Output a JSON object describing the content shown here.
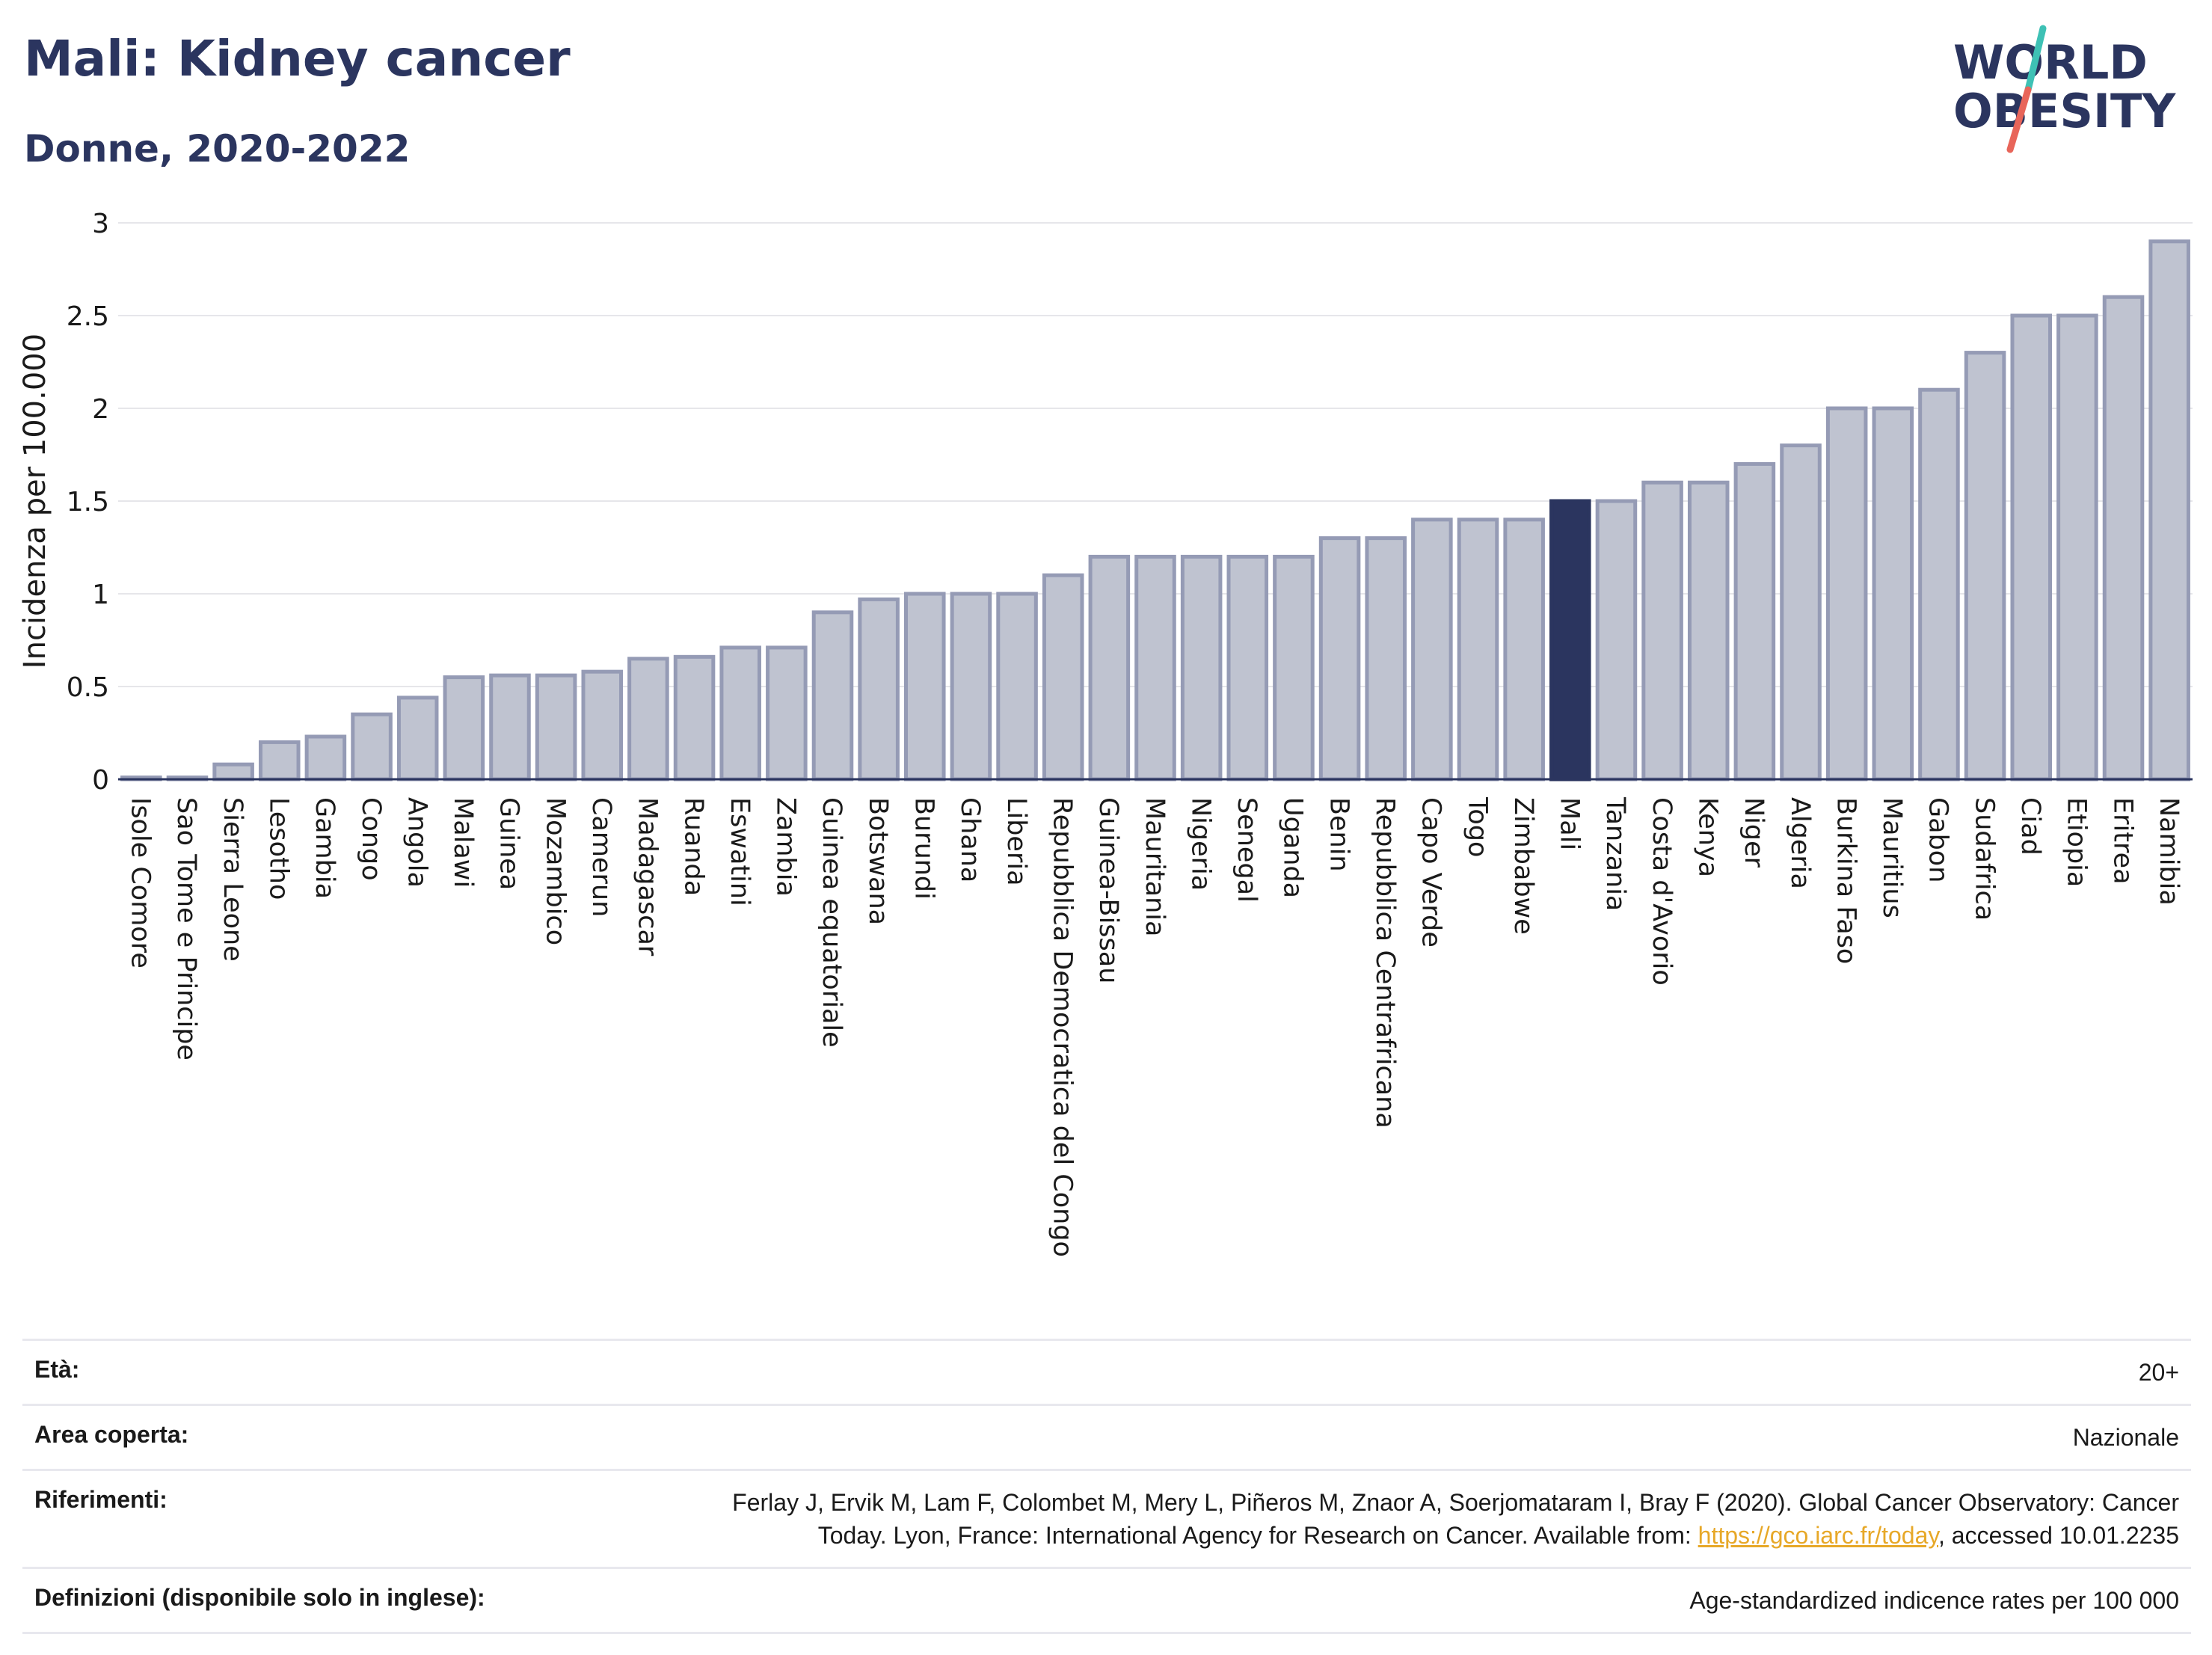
{
  "header": {
    "title": "Mali: Kidney cancer",
    "subtitle": "Donne, 2020-2022"
  },
  "logo": {
    "line1": "WORLD",
    "line2": "OBESITY",
    "accent_teal": "#3ec1b5",
    "accent_red": "#e8655a"
  },
  "colors": {
    "bar": "#bfc3d0",
    "bar_stroke": "#959bb5",
    "highlight": "#2b355f",
    "grid": "#e6e6ea",
    "axis": "#2b355f"
  },
  "chart_data": {
    "type": "bar",
    "title": "Mali: Kidney cancer",
    "subtitle": "Donne, 2020-2022",
    "ylabel": "Incidenza per 100.000",
    "xlabel": "",
    "ylim": [
      0,
      3
    ],
    "yticks": [
      0,
      0.5,
      1,
      1.5,
      2,
      2.5,
      3
    ],
    "ytick_labels": [
      "0",
      "0.5",
      "1",
      "1.5",
      "2",
      "2.5",
      "3"
    ],
    "grid": true,
    "highlight": "Mali",
    "categories": [
      "Isole Comore",
      "Sao Tome e Principe",
      "Sierra Leone",
      "Lesotho",
      "Gambia",
      "Congo",
      "Angola",
      "Malawi",
      "Guinea",
      "Mozambico",
      "Camerun",
      "Madagascar",
      "Ruanda",
      "Eswatini",
      "Zambia",
      "Guinea equatoriale",
      "Botswana",
      "Burundi",
      "Ghana",
      "Liberia",
      "Repubblica Democratica del Congo",
      "Guinea-Bissau",
      "Mauritania",
      "Nigeria",
      "Senegal",
      "Uganda",
      "Benin",
      "Repubblica Centrafricana",
      "Capo Verde",
      "Togo",
      "Zimbabwe",
      "Mali",
      "Tanzania",
      "Costa d'Avorio",
      "Kenya",
      "Niger",
      "Algeria",
      "Burkina Faso",
      "Mauritius",
      "Gabon",
      "Sudafrica",
      "Ciad",
      "Etiopia",
      "Eritrea",
      "Namibia"
    ],
    "values": [
      0.01,
      0.01,
      0.08,
      0.2,
      0.23,
      0.35,
      0.44,
      0.55,
      0.56,
      0.56,
      0.58,
      0.65,
      0.66,
      0.71,
      0.71,
      0.9,
      0.97,
      1.0,
      1.0,
      1.0,
      1.1,
      1.2,
      1.2,
      1.2,
      1.2,
      1.2,
      1.3,
      1.3,
      1.4,
      1.4,
      1.4,
      1.5,
      1.5,
      1.6,
      1.6,
      1.7,
      1.8,
      2.0,
      2.0,
      2.1,
      2.3,
      2.5,
      2.5,
      2.6,
      2.9
    ]
  },
  "info": {
    "age_label": "Età:",
    "age_value": "20+",
    "area_label": "Area coperta:",
    "area_value": "Nazionale",
    "ref_label": "Riferimenti:",
    "ref_text_1": "Ferlay J, Ervik M, Lam F, Colombet M, Mery L, Piñeros M, Znaor A, Soerjomataram I, Bray F (2020). Global Cancer Observatory: Cancer",
    "ref_text_2": "Today. Lyon, France: International Agency for Research on Cancer. Available from: ",
    "ref_link": "https://gco.iarc.fr/today",
    "ref_text_3": ", accessed 10.01.2235",
    "def_label": "Definizioni (disponibile solo in inglese):",
    "def_value": "Age-standardized indicence rates per 100 000"
  }
}
